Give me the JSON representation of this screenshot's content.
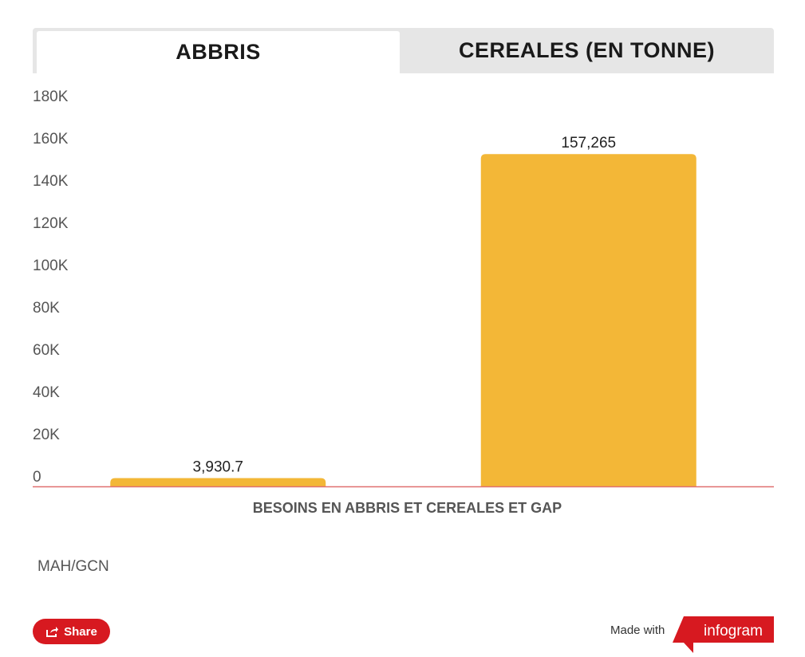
{
  "tabs": [
    {
      "label": "ABBRIS",
      "active": true
    },
    {
      "label": "CEREALES (EN TONNE)",
      "active": false
    }
  ],
  "chart_data": {
    "type": "bar",
    "categories": [
      "",
      ""
    ],
    "values": [
      3930.7,
      157265
    ],
    "data_labels": [
      "3,930.7",
      "157,265"
    ],
    "xlabel": "BESOINS EN ABBRIS ET CEREALES ET GAP",
    "ylabel": "",
    "ylim": [
      0,
      180000
    ],
    "yticks": [
      0,
      20000,
      40000,
      60000,
      80000,
      100000,
      120000,
      140000,
      160000,
      180000
    ],
    "ytick_labels": [
      "0",
      "20K",
      "40K",
      "60K",
      "80K",
      "100K",
      "120K",
      "140K",
      "160K",
      "180K"
    ],
    "grid": false,
    "bar_color": "#f3b737",
    "baseline_color": "#e07070"
  },
  "source": "MAH/GCN",
  "share": {
    "label": "Share",
    "icon": "share-icon"
  },
  "footer": {
    "made_with": "Made with",
    "logo": "infogram",
    "logo_color": "#d71920"
  }
}
